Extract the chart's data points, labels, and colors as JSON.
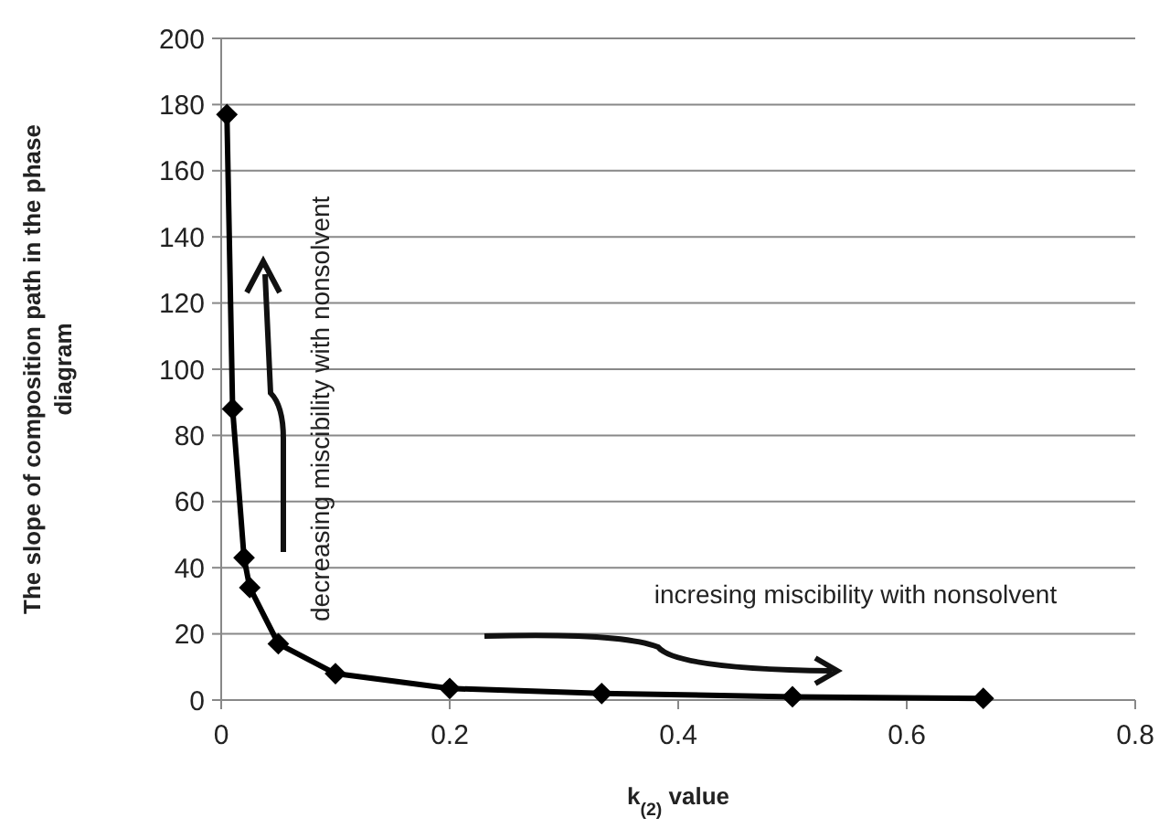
{
  "chart_data": {
    "type": "line",
    "xlabel": "k$_{(2)}$ value",
    "ylabel": "The slope of composition path in the phase diagram",
    "x": [
      0.005,
      0.01,
      0.02,
      0.025,
      0.05,
      0.1,
      0.2,
      0.333,
      0.5,
      0.667
    ],
    "series": [
      {
        "color": "#000000",
        "values": [
          177,
          88,
          43,
          34,
          17,
          8,
          3.5,
          2,
          1,
          0.5
        ]
      }
    ],
    "xlim": [
      0,
      0.8
    ],
    "xticks": [
      0,
      0.2,
      0.4,
      0.6,
      0.8
    ],
    "ylim": [
      0,
      200
    ],
    "yticks": [
      0,
      20,
      40,
      60,
      80,
      100,
      120,
      140,
      160,
      180,
      200
    ],
    "grid": "y",
    "marker": "diamond",
    "line_style": "solid",
    "annotations": [
      "decreasing miscibility with nonsolvent",
      "incresing miscibility with nonsolvent"
    ]
  }
}
